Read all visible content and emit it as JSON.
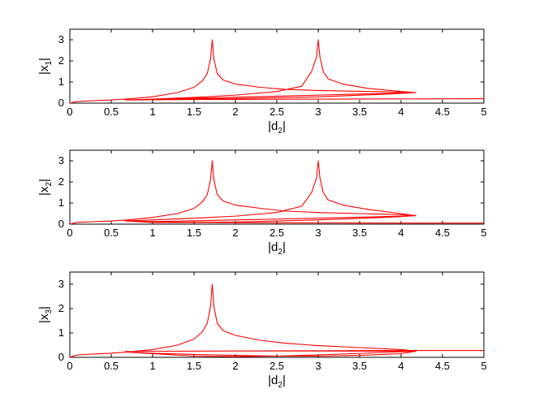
{
  "chart_data": [
    {
      "type": "line",
      "ylabel": {
        "base": "x",
        "subscript": "1"
      },
      "xlabel": {
        "base": "d",
        "subscript": "2"
      },
      "xlim": [
        0,
        5
      ],
      "ylim": [
        0,
        3.5
      ],
      "xticks": [
        "0",
        "0.5",
        "1",
        "1.5",
        "2",
        "2.5",
        "3",
        "3.5",
        "4",
        "4.5",
        "5"
      ],
      "yticks": [
        "0",
        "1",
        "2",
        "3"
      ],
      "series": [
        {
          "color": "#ff0000",
          "x": [
            0,
            0.05,
            0.1,
            0.3,
            0.5,
            0.7,
            1.0,
            1.3,
            1.5,
            1.6,
            1.66,
            1.7,
            1.72,
            1.74,
            1.78,
            1.85,
            2.0,
            2.3,
            2.6,
            3.0,
            3.5,
            4.0,
            4.18,
            3.8,
            3.4,
            3.0,
            2.5,
            2.0,
            1.5,
            1.0,
            0.67,
            1.0,
            1.5,
            2.0,
            2.5,
            2.8,
            2.92,
            2.98,
            3.0,
            3.02,
            3.06,
            3.12,
            3.3,
            3.6,
            4.0,
            4.18,
            3.8,
            3.0,
            2.0,
            1.0,
            0.67,
            1.0,
            2.0,
            3.0,
            4.0,
            5.0
          ],
          "y": [
            0,
            0.05,
            0.08,
            0.12,
            0.15,
            0.2,
            0.3,
            0.5,
            0.75,
            1.05,
            1.4,
            2.1,
            3.0,
            2.1,
            1.4,
            1.1,
            0.9,
            0.75,
            0.65,
            0.6,
            0.56,
            0.52,
            0.5,
            0.46,
            0.42,
            0.38,
            0.33,
            0.28,
            0.23,
            0.18,
            0.15,
            0.19,
            0.27,
            0.38,
            0.55,
            0.8,
            1.5,
            2.2,
            3.0,
            2.2,
            1.5,
            1.15,
            0.9,
            0.7,
            0.55,
            0.5,
            0.42,
            0.3,
            0.22,
            0.17,
            0.15,
            0.16,
            0.18,
            0.19,
            0.2,
            0.21
          ]
        }
      ]
    },
    {
      "type": "line",
      "ylabel": {
        "base": "x",
        "subscript": "2"
      },
      "xlabel": {
        "base": "d",
        "subscript": "2"
      },
      "xlim": [
        0,
        5
      ],
      "ylim": [
        0,
        3.5
      ],
      "xticks": [
        "0",
        "0.5",
        "1",
        "1.5",
        "2",
        "2.5",
        "3",
        "3.5",
        "4",
        "4.5",
        "5"
      ],
      "yticks": [
        "0",
        "1",
        "2",
        "3"
      ],
      "series": [
        {
          "color": "#ff0000",
          "x": [
            0,
            0.05,
            0.1,
            0.3,
            0.5,
            0.7,
            1.0,
            1.3,
            1.5,
            1.6,
            1.66,
            1.7,
            1.72,
            1.74,
            1.78,
            1.85,
            2.0,
            2.3,
            2.6,
            3.0,
            3.5,
            4.0,
            4.18,
            3.8,
            3.4,
            3.0,
            2.5,
            2.0,
            1.5,
            1.0,
            0.67,
            1.0,
            1.5,
            2.0,
            2.5,
            2.8,
            2.92,
            2.98,
            3.0,
            3.02,
            3.06,
            3.12,
            3.3,
            3.6,
            4.0,
            4.18,
            3.8,
            3.0,
            2.0,
            1.0,
            0.67,
            1.0,
            2.0,
            3.0,
            4.0,
            5.0
          ],
          "y": [
            0,
            0.05,
            0.09,
            0.12,
            0.15,
            0.2,
            0.32,
            0.5,
            0.75,
            1.05,
            1.4,
            2.1,
            3.0,
            2.1,
            1.4,
            1.1,
            0.9,
            0.75,
            0.62,
            0.55,
            0.5,
            0.45,
            0.4,
            0.36,
            0.32,
            0.28,
            0.24,
            0.2,
            0.16,
            0.12,
            0.15,
            0.2,
            0.28,
            0.38,
            0.55,
            0.85,
            1.5,
            2.2,
            3.0,
            2.2,
            1.5,
            1.15,
            0.9,
            0.7,
            0.5,
            0.4,
            0.32,
            0.2,
            0.1,
            0.08,
            0.15,
            0.1,
            0.07,
            0.06,
            0.05,
            0.05
          ]
        }
      ]
    },
    {
      "type": "line",
      "ylabel": {
        "base": "x",
        "subscript": "3"
      },
      "xlabel": {
        "base": "d",
        "subscript": "2"
      },
      "xlim": [
        0,
        5
      ],
      "ylim": [
        0,
        3.5
      ],
      "xticks": [
        "0",
        "0.5",
        "1",
        "1.5",
        "2",
        "2.5",
        "3",
        "3.5",
        "4",
        "4.5",
        "5"
      ],
      "yticks": [
        "0",
        "1",
        "2",
        "3"
      ],
      "series": [
        {
          "color": "#ff0000",
          "x": [
            0,
            0.05,
            0.1,
            0.3,
            0.5,
            0.7,
            1.0,
            1.3,
            1.5,
            1.6,
            1.66,
            1.7,
            1.72,
            1.74,
            1.78,
            1.85,
            2.0,
            2.3,
            2.6,
            3.0,
            3.5,
            4.0,
            4.18,
            3.8,
            3.4,
            3.0,
            2.5,
            2.0,
            1.5,
            1.0,
            0.67,
            1.0,
            1.5,
            2.0,
            2.5,
            3.0,
            3.5,
            4.0,
            4.18,
            3.8,
            3.0,
            2.0,
            1.0,
            0.67,
            1.0,
            2.0,
            3.0,
            4.0,
            5.0
          ],
          "y": [
            0,
            0.06,
            0.1,
            0.14,
            0.17,
            0.22,
            0.32,
            0.5,
            0.75,
            1.05,
            1.4,
            2.1,
            3.0,
            2.1,
            1.4,
            1.1,
            0.9,
            0.7,
            0.58,
            0.48,
            0.4,
            0.32,
            0.25,
            0.2,
            0.15,
            0.1,
            0.05,
            0.03,
            0.05,
            0.15,
            0.22,
            0.17,
            0.12,
            0.08,
            0.05,
            0.05,
            0.08,
            0.15,
            0.25,
            0.25,
            0.26,
            0.26,
            0.25,
            0.24,
            0.25,
            0.26,
            0.27,
            0.28,
            0.28
          ]
        }
      ]
    }
  ]
}
